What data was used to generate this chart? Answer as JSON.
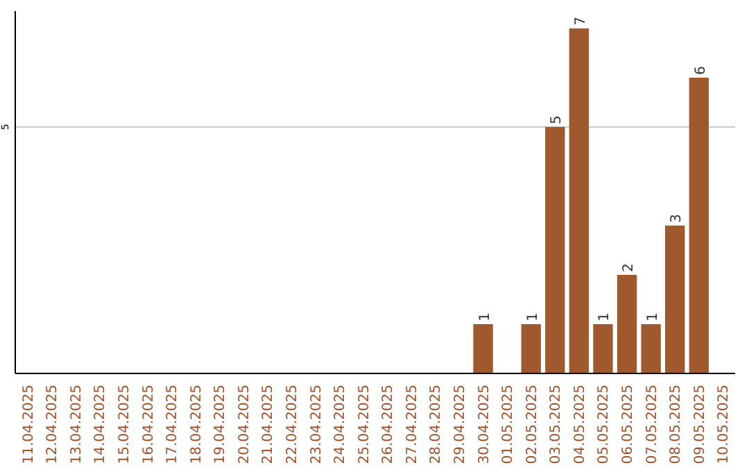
{
  "chart_data": {
    "type": "bar",
    "categories": [
      "11.04.2025",
      "12.04.2025",
      "13.04.2025",
      "14.04.2025",
      "15.04.2025",
      "16.04.2025",
      "17.04.2025",
      "18.04.2025",
      "19.04.2025",
      "20.04.2025",
      "21.04.2025",
      "22.04.2025",
      "23.04.2025",
      "24.04.2025",
      "25.04.2025",
      "26.04.2025",
      "27.04.2025",
      "28.04.2025",
      "29.04.2025",
      "30.04.2025",
      "01.05.2025",
      "02.05.2025",
      "03.05.2025",
      "04.05.2025",
      "05.05.2025",
      "06.05.2025",
      "07.05.2025",
      "08.05.2025",
      "09.05.2025",
      "10.05.2025"
    ],
    "values": [
      null,
      null,
      null,
      null,
      null,
      null,
      null,
      null,
      null,
      null,
      null,
      null,
      null,
      null,
      null,
      null,
      null,
      null,
      null,
      1,
      null,
      1,
      5,
      7,
      1,
      2,
      1,
      3,
      6,
      null
    ],
    "data_labels": true,
    "color": "#a0582d",
    "ylim": [
      0,
      7.35
    ],
    "yticks": [
      5
    ],
    "grid": "y"
  }
}
